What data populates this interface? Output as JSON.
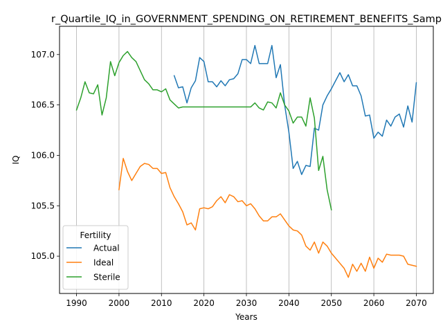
{
  "chart_data": {
    "type": "line",
    "title": "r_Quartile_IQ_in_GOVERNMENT_SPENDING_ON_RETIREMENT_BENEFITS_Samp",
    "xlabel": "Years",
    "ylabel": "IQ",
    "xlim": [
      1986,
      2074
    ],
    "ylim": [
      104.63,
      107.28
    ],
    "xticks": [
      1990,
      2000,
      2010,
      2020,
      2030,
      2040,
      2050,
      2060,
      2070
    ],
    "yticks": [
      105.0,
      105.5,
      106.0,
      106.5,
      107.0
    ],
    "grid": "x-only",
    "legend": {
      "title": "Fertility",
      "placement": "lower-left"
    },
    "series": [
      {
        "name": "Actual",
        "color": "#1f77b4",
        "x": [
          2013,
          2014,
          2015,
          2016,
          2017,
          2018,
          2019,
          2020,
          2021,
          2022,
          2023,
          2024,
          2025,
          2026,
          2027,
          2028,
          2029,
          2030,
          2031,
          2032,
          2033,
          2034,
          2035,
          2036,
          2037,
          2038,
          2039,
          2040,
          2041,
          2042,
          2043,
          2044,
          2045,
          2046,
          2047,
          2048,
          2049,
          2050,
          2051,
          2052,
          2053,
          2054,
          2055,
          2056,
          2057,
          2058,
          2059,
          2060,
          2061,
          2062,
          2063,
          2064,
          2065,
          2066,
          2067,
          2068,
          2069,
          2070
        ],
        "values": [
          106.79,
          106.67,
          106.68,
          106.52,
          106.67,
          106.74,
          106.97,
          106.93,
          106.73,
          106.73,
          106.68,
          106.74,
          106.69,
          106.75,
          106.76,
          106.81,
          106.95,
          106.95,
          106.91,
          107.09,
          106.91,
          106.91,
          106.91,
          107.09,
          106.77,
          106.9,
          106.5,
          106.23,
          105.87,
          105.94,
          105.81,
          105.9,
          105.89,
          106.27,
          106.25,
          106.5,
          106.59,
          106.66,
          106.74,
          106.82,
          106.73,
          106.8,
          106.69,
          106.69,
          106.59,
          106.39,
          106.4,
          106.17,
          106.23,
          106.19,
          106.35,
          106.29,
          106.38,
          106.41,
          106.28,
          106.49,
          106.33,
          106.72
        ]
      },
      {
        "name": "Ideal",
        "color": "#ff7f0e",
        "x": [
          2000,
          2001,
          2002,
          2003,
          2004,
          2005,
          2006,
          2007,
          2008,
          2009,
          2010,
          2011,
          2012,
          2013,
          2014,
          2015,
          2016,
          2017,
          2018,
          2019,
          2020,
          2021,
          2022,
          2023,
          2024,
          2025,
          2026,
          2027,
          2028,
          2029,
          2030,
          2031,
          2032,
          2033,
          2034,
          2035,
          2036,
          2037,
          2038,
          2039,
          2040,
          2041,
          2042,
          2043,
          2044,
          2045,
          2046,
          2047,
          2048,
          2049,
          2050,
          2051,
          2052,
          2053,
          2054,
          2055,
          2056,
          2057,
          2058,
          2059,
          2060,
          2061,
          2062,
          2063,
          2064,
          2065,
          2066,
          2067,
          2068,
          2069,
          2070
        ],
        "values": [
          105.66,
          105.97,
          105.84,
          105.75,
          105.82,
          105.89,
          105.92,
          105.91,
          105.87,
          105.87,
          105.82,
          105.83,
          105.68,
          105.59,
          105.52,
          105.44,
          105.31,
          105.33,
          105.26,
          105.47,
          105.48,
          105.47,
          105.49,
          105.55,
          105.59,
          105.53,
          105.61,
          105.59,
          105.54,
          105.55,
          105.5,
          105.52,
          105.47,
          105.4,
          105.35,
          105.35,
          105.39,
          105.39,
          105.42,
          105.36,
          105.3,
          105.26,
          105.25,
          105.21,
          105.1,
          105.06,
          105.14,
          105.03,
          105.14,
          105.1,
          105.03,
          104.98,
          104.93,
          104.88,
          104.79,
          104.92,
          104.85,
          104.93,
          104.85,
          104.99,
          104.88,
          104.98,
          104.94,
          105.02,
          105.01,
          105.01,
          105.01,
          105.0,
          104.92,
          104.91,
          104.9
        ]
      },
      {
        "name": "Sterile",
        "color": "#2ca02c",
        "x": [
          1990,
          1991,
          1992,
          1993,
          1994,
          1995,
          1996,
          1997,
          1998,
          1999,
          2000,
          2001,
          2002,
          2003,
          2004,
          2005,
          2006,
          2007,
          2008,
          2009,
          2010,
          2011,
          2012,
          2013,
          2014,
          2015,
          2016,
          2017,
          2018,
          2019,
          2020,
          2021,
          2022,
          2023,
          2024,
          2025,
          2026,
          2027,
          2028,
          2029,
          2030,
          2031,
          2032,
          2033,
          2034,
          2035,
          2036,
          2037,
          2038,
          2039,
          2040,
          2041,
          2042,
          2043,
          2044,
          2045,
          2046,
          2047,
          2048,
          2049,
          2050
        ],
        "values": [
          106.45,
          106.57,
          106.73,
          106.62,
          106.61,
          106.7,
          106.4,
          106.57,
          106.93,
          106.79,
          106.92,
          106.99,
          107.03,
          106.97,
          106.93,
          106.84,
          106.75,
          106.71,
          106.65,
          106.65,
          106.63,
          106.66,
          106.55,
          106.51,
          106.47,
          106.48,
          106.48,
          106.48,
          106.48,
          106.48,
          106.48,
          106.48,
          106.48,
          106.48,
          106.48,
          106.48,
          106.48,
          106.48,
          106.48,
          106.48,
          106.48,
          106.48,
          106.52,
          106.47,
          106.45,
          106.53,
          106.52,
          106.47,
          106.62,
          106.5,
          106.44,
          106.32,
          106.38,
          106.38,
          106.29,
          106.57,
          106.37,
          105.85,
          105.99,
          105.66,
          105.46
        ]
      }
    ]
  }
}
